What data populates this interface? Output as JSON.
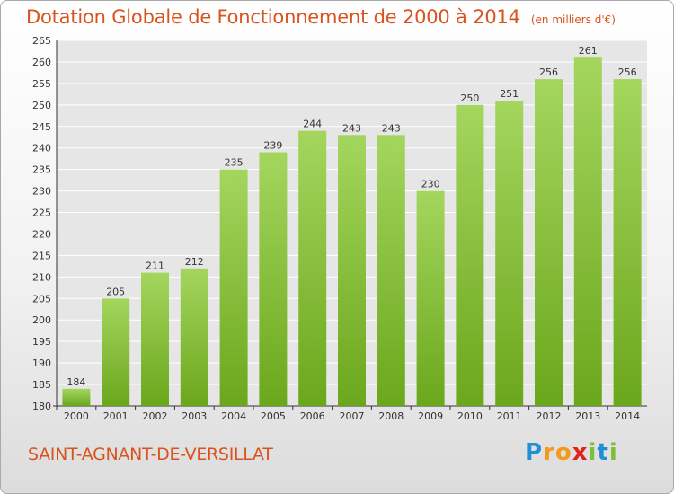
{
  "header": {
    "title": "Dotation Globale de Fonctionnement de 2000 à 2014",
    "subtitle": "(en milliers d'€)"
  },
  "footer": {
    "commune": "SAINT-AGNANT-DE-VERSILLAT",
    "logo": "Proxiti",
    "logo_letters": [
      {
        "ch": "P",
        "color": "#1f8fd6"
      },
      {
        "ch": "r",
        "color": "#f39a1c"
      },
      {
        "ch": "o",
        "color": "#f39a1c"
      },
      {
        "ch": "x",
        "color": "#e2231a"
      },
      {
        "ch": "i",
        "color": "#7cbf3a"
      },
      {
        "ch": "t",
        "color": "#1f8fd6"
      },
      {
        "ch": "i",
        "color": "#7cbf3a"
      }
    ]
  },
  "colors": {
    "bar_light": "#a4d65e",
    "bar_dark": "#6ba71c",
    "accent": "#d9531e",
    "grid": "#ffffff",
    "plot_bg": "#e6e6e6"
  },
  "chart_data": {
    "type": "bar",
    "title": "Dotation Globale de Fonctionnement de 2000 à 2014",
    "subtitle": "(en milliers d'€)",
    "xlabel": "",
    "ylabel": "",
    "categories": [
      "2000",
      "2001",
      "2002",
      "2003",
      "2004",
      "2005",
      "2006",
      "2007",
      "2008",
      "2009",
      "2010",
      "2011",
      "2012",
      "2013",
      "2014"
    ],
    "values": [
      184,
      205,
      211,
      212,
      235,
      239,
      244,
      243,
      243,
      230,
      250,
      251,
      256,
      261,
      256
    ],
    "ylim": [
      180,
      265
    ],
    "yticks": [
      180,
      185,
      190,
      195,
      200,
      205,
      210,
      215,
      220,
      225,
      230,
      235,
      240,
      245,
      250,
      255,
      260,
      265
    ],
    "grid": true,
    "data_labels": true
  }
}
